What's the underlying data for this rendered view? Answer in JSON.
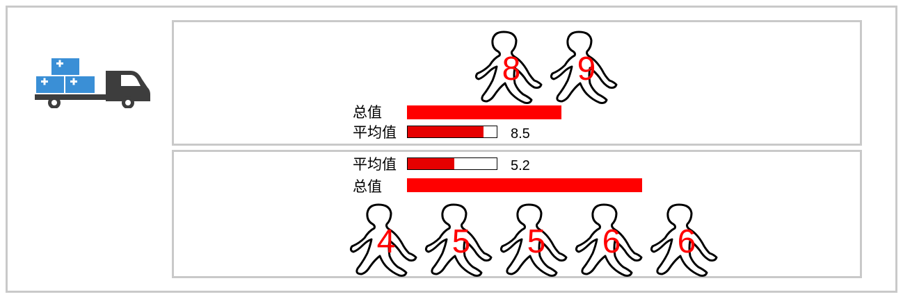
{
  "colors": {
    "bar": "#ff0000",
    "number": "#ff0000",
    "border": "#c9c9c9",
    "box": "#3a8fd6"
  },
  "icon": "delivery-truck-icon",
  "groups": [
    {
      "total_label": "总值",
      "avg_label": "平均值",
      "avg_value": "8.5",
      "avg_fraction": 0.85,
      "total": 17,
      "figures": [
        "8",
        "9"
      ]
    },
    {
      "total_label": "总值",
      "avg_label": "平均值",
      "avg_value": "5.2",
      "avg_fraction": 0.52,
      "total": 26,
      "figures": [
        "4",
        "5",
        "5",
        "6",
        "6"
      ]
    }
  ]
}
